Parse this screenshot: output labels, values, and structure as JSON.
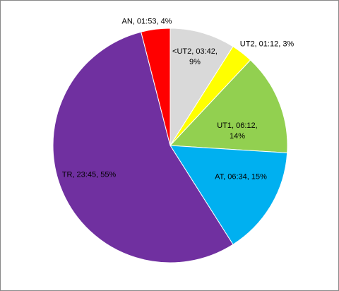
{
  "chart_data": {
    "type": "pie",
    "labels": [
      "<UT2, 03:42, 9%",
      "UT2, 01:12, 3%",
      "UT1, 06:12, 14%",
      "AT, 06:34, 15%",
      "TR, 23:45, 55%",
      "AN, 01:53, 4%"
    ],
    "values": [
      9,
      3,
      14,
      15,
      55,
      4
    ],
    "colors": [
      "#d9d9d9",
      "#ffff00",
      "#92d050",
      "#00b0f0",
      "#7030a0",
      "#ff0000"
    ]
  }
}
